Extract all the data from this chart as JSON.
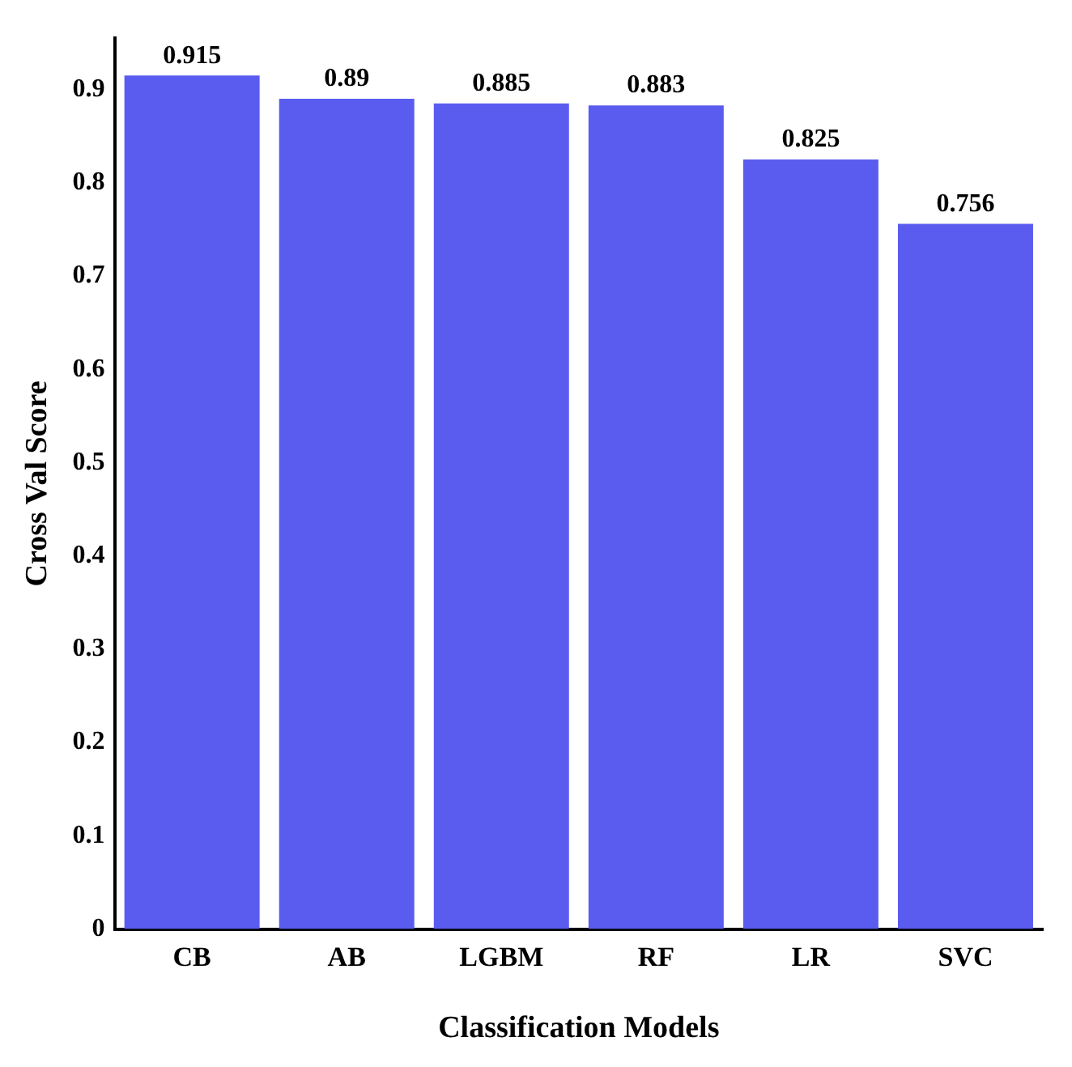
{
  "chart_data": {
    "type": "bar",
    "xlabel": "Classification Models",
    "ylabel": "Cross Val Score",
    "categories": [
      "CB",
      "AB",
      "LGBM",
      "RF",
      "LR",
      "SVC"
    ],
    "values": [
      0.915,
      0.89,
      0.885,
      0.883,
      0.825,
      0.756
    ],
    "color": "#5a5cf0",
    "ylim": [
      0,
      0.955
    ],
    "yticks": [
      0,
      0.1,
      0.2,
      0.3,
      0.4,
      0.5,
      0.6,
      0.7,
      0.8,
      0.9
    ],
    "grid": false,
    "legend": false,
    "data_labels": true
  }
}
